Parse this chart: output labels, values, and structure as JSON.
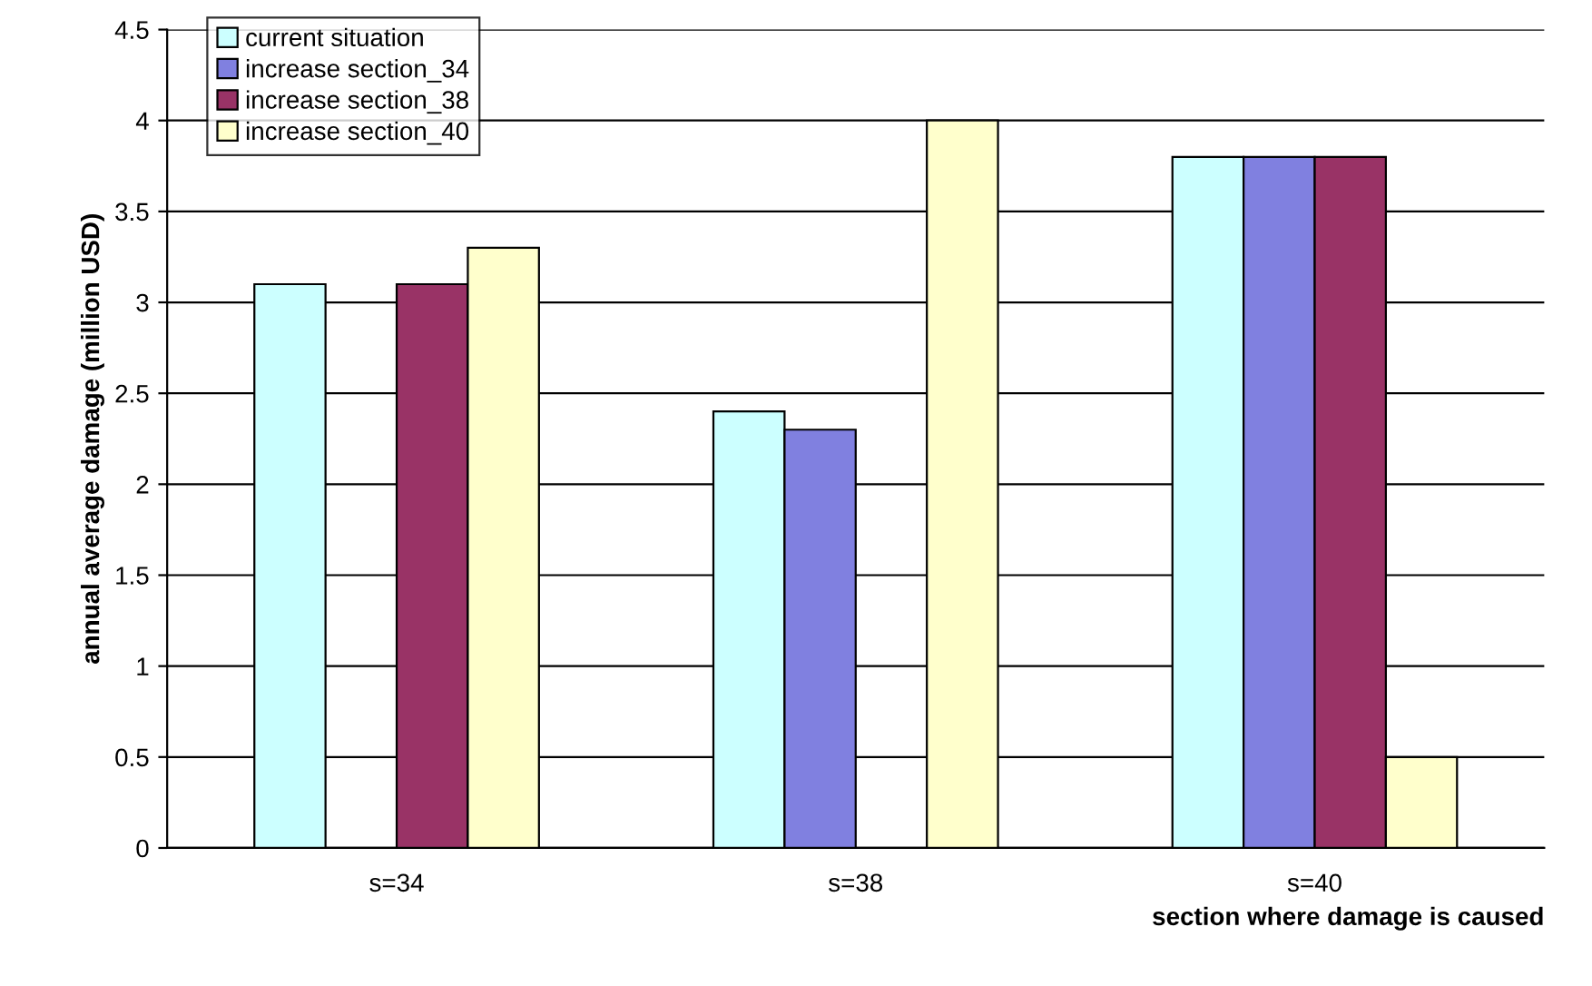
{
  "chart_data": {
    "type": "bar",
    "xlabel": "section where damage is caused",
    "ylabel": "annual average damage (million USD)",
    "categories": [
      "s=34",
      "s=38",
      "s=40"
    ],
    "series": [
      {
        "name": "current situation",
        "color": "#ccffff",
        "values": [
          3.1,
          2.4,
          3.8
        ]
      },
      {
        "name": "increase section_34",
        "color": "#8080e0",
        "values": [
          null,
          2.3,
          3.8
        ]
      },
      {
        "name": "increase section_38",
        "color": "#993366",
        "values": [
          3.1,
          null,
          3.8
        ]
      },
      {
        "name": "increase section_40",
        "color": "#ffffcc",
        "values": [
          3.3,
          4.0,
          0.5
        ]
      }
    ],
    "ylim": [
      0,
      4.5
    ],
    "yticks": [
      0,
      0.5,
      1,
      1.5,
      2,
      2.5,
      3,
      3.5,
      4,
      4.5
    ],
    "grid": "y",
    "legend": "top left"
  }
}
